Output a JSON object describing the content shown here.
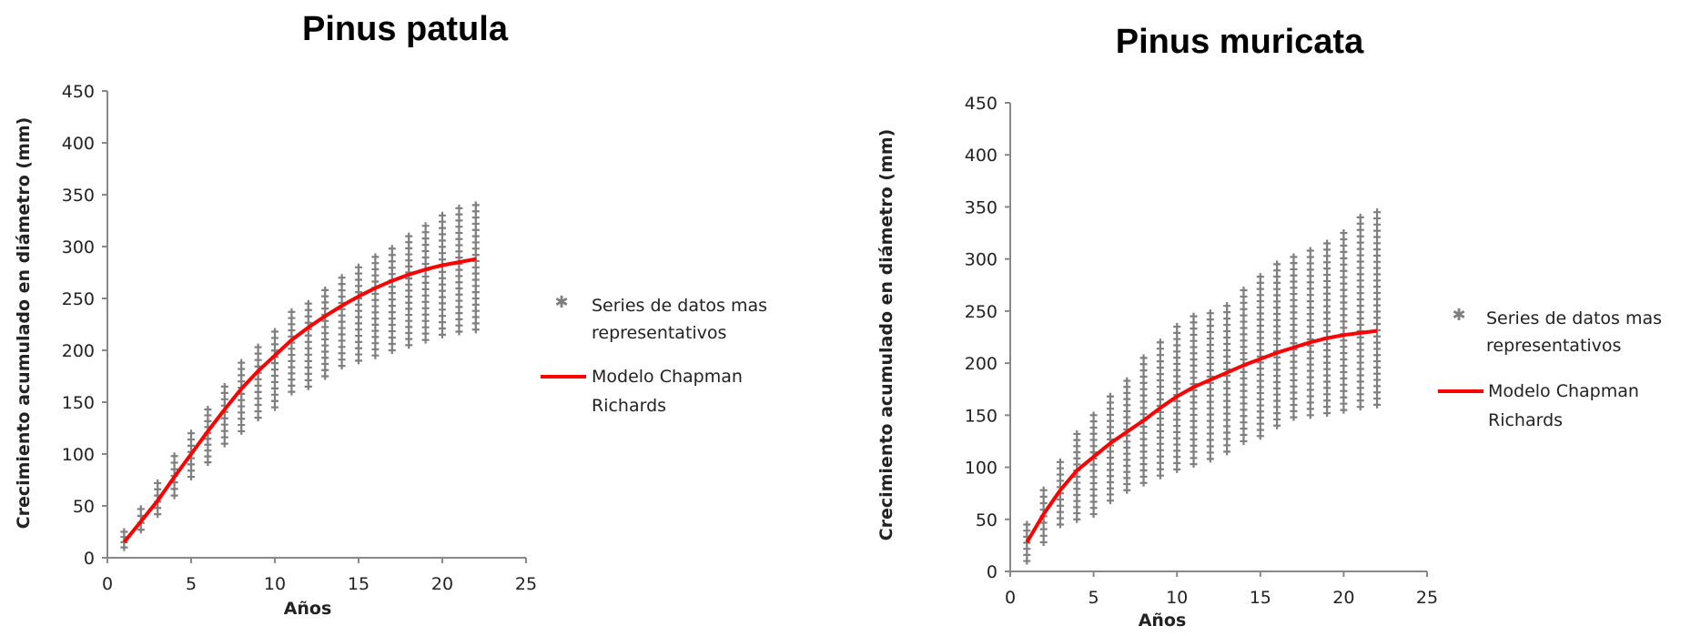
{
  "chart_data": [
    {
      "type": "scatter",
      "title": "Pinus patula",
      "xlabel": "Años",
      "ylabel": "Crecimiento acumulado en diámetro (mm)",
      "xlim": [
        0,
        25
      ],
      "ylim": [
        0,
        450
      ],
      "xticks": [
        "0",
        "5",
        "10",
        "15",
        "20",
        "25"
      ],
      "yticks": [
        "0",
        "50",
        "100",
        "150",
        "200",
        "250",
        "300",
        "350",
        "400",
        "450"
      ],
      "grid": false,
      "legend_position": "right",
      "scatter_color": "#7f7f7f",
      "line_color": "#ff0000",
      "series": [
        {
          "name": "Series de datos mas representativos",
          "kind": "scatter",
          "marker": "+",
          "ranges": [
            {
              "x": 1,
              "min": 10,
              "max": 25
            },
            {
              "x": 2,
              "min": 27,
              "max": 47
            },
            {
              "x": 3,
              "min": 42,
              "max": 72
            },
            {
              "x": 4,
              "min": 60,
              "max": 98
            },
            {
              "x": 5,
              "min": 78,
              "max": 120
            },
            {
              "x": 6,
              "min": 92,
              "max": 143
            },
            {
              "x": 7,
              "min": 110,
              "max": 165
            },
            {
              "x": 8,
              "min": 122,
              "max": 188
            },
            {
              "x": 9,
              "min": 135,
              "max": 203
            },
            {
              "x": 10,
              "min": 145,
              "max": 218
            },
            {
              "x": 11,
              "min": 160,
              "max": 237
            },
            {
              "x": 12,
              "min": 165,
              "max": 245
            },
            {
              "x": 13,
              "min": 175,
              "max": 258
            },
            {
              "x": 14,
              "min": 185,
              "max": 270
            },
            {
              "x": 15,
              "min": 190,
              "max": 280
            },
            {
              "x": 16,
              "min": 195,
              "max": 290
            },
            {
              "x": 17,
              "min": 200,
              "max": 298
            },
            {
              "x": 18,
              "min": 205,
              "max": 310
            },
            {
              "x": 19,
              "min": 210,
              "max": 320
            },
            {
              "x": 20,
              "min": 215,
              "max": 330
            },
            {
              "x": 21,
              "min": 218,
              "max": 337
            },
            {
              "x": 22,
              "min": 220,
              "max": 340
            }
          ]
        },
        {
          "name": "Modelo Chapman Richards",
          "kind": "line",
          "x": [
            1,
            2,
            3,
            4,
            5,
            6,
            7,
            8,
            9,
            10,
            11,
            12,
            13,
            14,
            15,
            16,
            17,
            18,
            19,
            20,
            21,
            22
          ],
          "y": [
            15,
            35,
            55,
            78,
            100,
            122,
            143,
            163,
            180,
            195,
            210,
            222,
            233,
            243,
            252,
            260,
            267,
            273,
            278,
            282,
            285,
            288
          ]
        }
      ],
      "legend": [
        "Series de datos mas",
        "representativos",
        "Modelo Chapman",
        "Richards"
      ]
    },
    {
      "type": "scatter",
      "title": "Pinus muricata",
      "xlabel": "Años",
      "ylabel": "Crecimiento acumulado en diámetro (mm)",
      "xlim": [
        0,
        25
      ],
      "ylim": [
        0,
        450
      ],
      "xticks": [
        "0",
        "5",
        "10",
        "15",
        "20",
        "25"
      ],
      "yticks": [
        "0",
        "50",
        "100",
        "150",
        "200",
        "250",
        "300",
        "350",
        "400",
        "450"
      ],
      "grid": false,
      "legend_position": "right",
      "scatter_color": "#7f7f7f",
      "line_color": "#ff0000",
      "series": [
        {
          "name": "Series de datos mas representativos",
          "kind": "scatter",
          "marker": "+",
          "ranges": [
            {
              "x": 1,
              "min": 10,
              "max": 45
            },
            {
              "x": 2,
              "min": 28,
              "max": 78
            },
            {
              "x": 3,
              "min": 45,
              "max": 105
            },
            {
              "x": 4,
              "min": 50,
              "max": 132
            },
            {
              "x": 5,
              "min": 55,
              "max": 150
            },
            {
              "x": 6,
              "min": 68,
              "max": 168
            },
            {
              "x": 7,
              "min": 78,
              "max": 183
            },
            {
              "x": 8,
              "min": 85,
              "max": 205
            },
            {
              "x": 9,
              "min": 92,
              "max": 220
            },
            {
              "x": 10,
              "min": 98,
              "max": 235
            },
            {
              "x": 11,
              "min": 103,
              "max": 245
            },
            {
              "x": 12,
              "min": 108,
              "max": 248
            },
            {
              "x": 13,
              "min": 115,
              "max": 255
            },
            {
              "x": 14,
              "min": 125,
              "max": 270
            },
            {
              "x": 15,
              "min": 130,
              "max": 283
            },
            {
              "x": 16,
              "min": 140,
              "max": 295
            },
            {
              "x": 17,
              "min": 148,
              "max": 302
            },
            {
              "x": 18,
              "min": 150,
              "max": 308
            },
            {
              "x": 19,
              "min": 152,
              "max": 315
            },
            {
              "x": 20,
              "min": 155,
              "max": 325
            },
            {
              "x": 21,
              "min": 158,
              "max": 340
            },
            {
              "x": 22,
              "min": 160,
              "max": 345
            }
          ]
        },
        {
          "name": "Modelo Chapman Richards",
          "kind": "line",
          "x": [
            1,
            2,
            3,
            4,
            5,
            6,
            7,
            8,
            9,
            10,
            11,
            12,
            13,
            14,
            15,
            16,
            17,
            18,
            19,
            20,
            21,
            22
          ],
          "y": [
            28,
            55,
            78,
            97,
            110,
            123,
            134,
            145,
            157,
            168,
            177,
            184,
            191,
            198,
            204,
            210,
            215,
            220,
            224,
            227,
            229,
            231
          ]
        }
      ],
      "legend": [
        "Series de datos mas",
        "representativos",
        "Modelo Chapman",
        "Richards"
      ]
    }
  ]
}
